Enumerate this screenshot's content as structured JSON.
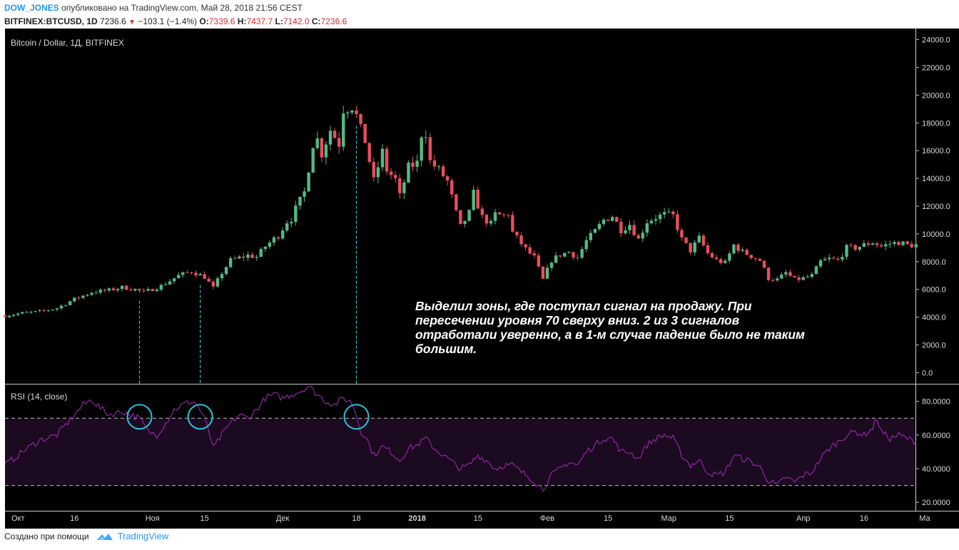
{
  "header": {
    "author": "DOW_JONES",
    "published": "опубликовано на TradingView.com, Май 28, 2018 21:56 CEST",
    "symbol": "BITFINEX:BTCUSD, 1D",
    "last": "7236.6",
    "change": "−103.1 (−1.4%)",
    "o_label": "O:",
    "o_value": "7339.6",
    "h_label": "H:",
    "h_value": "7437.7",
    "l_label": "L:",
    "l_value": "7142.0",
    "c_label": "C:",
    "c_value": "7236.6"
  },
  "footer": {
    "created": "Создано при помощи",
    "brand": "TradingView"
  },
  "annotation": "Выделил зоны, где поступал сигнал на продажу. При пересечении уровня 70 сверху вниз. 2 из 3 сигналов отработали уверенно, а в 1-м случае падение было не таким большим.",
  "colors": {
    "background": "#000000",
    "up": "#53b987",
    "down": "#eb4d5c",
    "rsi": "#9c27b0",
    "rsi_band": "#1b0a20",
    "signal": "#26c6da",
    "axis_text": "#d9d9d9"
  },
  "chart_data": [
    {
      "type": "candlestick",
      "title": "Bitcoin / Dollar, 1Д, BITFINEX",
      "ylim": [
        -800,
        24800
      ],
      "y_ticks": [
        "0.0",
        "2000.0",
        "4000.0",
        "6000.0",
        "8000.0",
        "10000.0",
        "12000.0",
        "14000.0",
        "16000.0",
        "18000.0",
        "20000.0",
        "22000.0",
        "24000.0"
      ],
      "y_tick_values": [
        0,
        2000,
        4000,
        6000,
        8000,
        10000,
        12000,
        14000,
        16000,
        18000,
        20000,
        22000,
        24000
      ],
      "x_labels": [
        "Окт",
        "16",
        "Ноя",
        "15",
        "Дек",
        "18",
        "2018",
        "15",
        "Фев",
        "15",
        "Мар",
        "15",
        "Апр",
        "16",
        "Ма"
      ],
      "x_label_days": [
        3,
        16,
        34,
        46,
        64,
        81,
        95,
        109,
        125,
        139,
        153,
        167,
        184,
        198,
        212
      ],
      "start": "2017-09-28",
      "signal_days": [
        31,
        45,
        81
      ],
      "anchors": [
        [
          0,
          4100
        ],
        [
          4,
          4300
        ],
        [
          8,
          4400
        ],
        [
          12,
          4650
        ],
        [
          16,
          5300
        ],
        [
          20,
          5800
        ],
        [
          24,
          5950
        ],
        [
          27,
          6150
        ],
        [
          30,
          6000
        ],
        [
          32,
          5800
        ],
        [
          36,
          6250
        ],
        [
          40,
          7000
        ],
        [
          43,
          7300
        ],
        [
          46,
          6900
        ],
        [
          48,
          6100
        ],
        [
          50,
          7200
        ],
        [
          52,
          8100
        ],
        [
          56,
          8450
        ],
        [
          58,
          8350
        ],
        [
          60,
          9100
        ],
        [
          63,
          9900
        ],
        [
          65,
          10900
        ],
        [
          66,
          11100
        ],
        [
          67,
          11800
        ],
        [
          69,
          13000
        ],
        [
          71,
          16500
        ],
        [
          72,
          16800
        ],
        [
          73,
          15800
        ],
        [
          75,
          17500
        ],
        [
          77,
          16500
        ],
        [
          78,
          19000
        ],
        [
          80,
          19200
        ],
        [
          81,
          18500
        ],
        [
          82,
          17500
        ],
        [
          83,
          16700
        ],
        [
          85,
          13800
        ],
        [
          87,
          15900
        ],
        [
          88,
          14600
        ],
        [
          90,
          13900
        ],
        [
          91,
          12700
        ],
        [
          93,
          14800
        ],
        [
          95,
          15100
        ],
        [
          96,
          17200
        ],
        [
          97,
          17300
        ],
        [
          98,
          15200
        ],
        [
          100,
          14600
        ],
        [
          102,
          13800
        ],
        [
          104,
          11500
        ],
        [
          105,
          10500
        ],
        [
          107,
          11500
        ],
        [
          108,
          12900
        ],
        [
          110,
          11200
        ],
        [
          112,
          10700
        ],
        [
          113,
          11400
        ],
        [
          115,
          11300
        ],
        [
          116,
          11500
        ],
        [
          117,
          10100
        ],
        [
          120,
          8900
        ],
        [
          122,
          8300
        ],
        [
          124,
          6700
        ],
        [
          126,
          8100
        ],
        [
          128,
          8500
        ],
        [
          130,
          8700
        ],
        [
          132,
          8300
        ],
        [
          134,
          9500
        ],
        [
          136,
          10200
        ],
        [
          138,
          11000
        ],
        [
          140,
          11300
        ],
        [
          142,
          10300
        ],
        [
          144,
          10700
        ],
        [
          146,
          9600
        ],
        [
          148,
          10900
        ],
        [
          150,
          11200
        ],
        [
          152,
          11400
        ],
        [
          154,
          11300
        ],
        [
          156,
          9600
        ],
        [
          158,
          8800
        ],
        [
          160,
          9700
        ],
        [
          162,
          8600
        ],
        [
          164,
          8100
        ],
        [
          166,
          7900
        ],
        [
          168,
          9200
        ],
        [
          170,
          8700
        ],
        [
          172,
          8400
        ],
        [
          174,
          8100
        ],
        [
          176,
          6800
        ],
        [
          178,
          6700
        ],
        [
          180,
          7200
        ],
        [
          182,
          6700
        ],
        [
          184,
          6800
        ],
        [
          186,
          7000
        ],
        [
          188,
          8000
        ],
        [
          190,
          8200
        ],
        [
          192,
          8100
        ],
        [
          194,
          9000
        ],
        [
          196,
          9000
        ],
        [
          198,
          9200
        ],
        [
          200,
          9400
        ],
        [
          202,
          9100
        ],
        [
          204,
          9300
        ],
        [
          206,
          9400
        ],
        [
          208,
          9200
        ],
        [
          210,
          9200
        ]
      ]
    },
    {
      "type": "line",
      "title": "RSI (14, close)",
      "ylim": [
        15,
        90
      ],
      "y_ticks": [
        "20.0000",
        "40.0000",
        "60.0000",
        "80.0000"
      ],
      "y_tick_values": [
        20,
        40,
        60,
        80
      ],
      "band": [
        30,
        70
      ],
      "rsi_anchors": [
        [
          0,
          42
        ],
        [
          4,
          50
        ],
        [
          8,
          57
        ],
        [
          12,
          60
        ],
        [
          14,
          66
        ],
        [
          16,
          72
        ],
        [
          18,
          78
        ],
        [
          20,
          81
        ],
        [
          22,
          76
        ],
        [
          24,
          72
        ],
        [
          27,
          74
        ],
        [
          29,
          72
        ],
        [
          31,
          70
        ],
        [
          33,
          62
        ],
        [
          35,
          60
        ],
        [
          37,
          67
        ],
        [
          39,
          75
        ],
        [
          41,
          78
        ],
        [
          43,
          80
        ],
        [
          44,
          79
        ],
        [
          46,
          70
        ],
        [
          47,
          62
        ],
        [
          48,
          52
        ],
        [
          50,
          60
        ],
        [
          52,
          67
        ],
        [
          54,
          72
        ],
        [
          56,
          70
        ],
        [
          58,
          75
        ],
        [
          60,
          82
        ],
        [
          62,
          84
        ],
        [
          64,
          82
        ],
        [
          66,
          84
        ],
        [
          68,
          86
        ],
        [
          70,
          89
        ],
        [
          72,
          84
        ],
        [
          74,
          80
        ],
        [
          76,
          78
        ],
        [
          78,
          82
        ],
        [
          80,
          79
        ],
        [
          81,
          72
        ],
        [
          82,
          62
        ],
        [
          83,
          60
        ],
        [
          85,
          48
        ],
        [
          87,
          53
        ],
        [
          89,
          50
        ],
        [
          91,
          45
        ],
        [
          93,
          52
        ],
        [
          95,
          54
        ],
        [
          97,
          58
        ],
        [
          99,
          52
        ],
        [
          101,
          48
        ],
        [
          103,
          44
        ],
        [
          105,
          40
        ],
        [
          107,
          42
        ],
        [
          109,
          48
        ],
        [
          111,
          45
        ],
        [
          113,
          40
        ],
        [
          115,
          42
        ],
        [
          117,
          42
        ],
        [
          119,
          38
        ],
        [
          121,
          35
        ],
        [
          123,
          30
        ],
        [
          124,
          28
        ],
        [
          126,
          36
        ],
        [
          128,
          40
        ],
        [
          130,
          44
        ],
        [
          132,
          42
        ],
        [
          134,
          50
        ],
        [
          136,
          54
        ],
        [
          138,
          58
        ],
        [
          140,
          58
        ],
        [
          142,
          50
        ],
        [
          144,
          50
        ],
        [
          146,
          46
        ],
        [
          148,
          54
        ],
        [
          150,
          58
        ],
        [
          152,
          60
        ],
        [
          154,
          58
        ],
        [
          156,
          48
        ],
        [
          158,
          42
        ],
        [
          160,
          45
        ],
        [
          162,
          38
        ],
        [
          164,
          36
        ],
        [
          166,
          38
        ],
        [
          168,
          48
        ],
        [
          170,
          46
        ],
        [
          172,
          44
        ],
        [
          174,
          41
        ],
        [
          176,
          33
        ],
        [
          178,
          30
        ],
        [
          180,
          35
        ],
        [
          182,
          32
        ],
        [
          184,
          36
        ],
        [
          186,
          38
        ],
        [
          188,
          46
        ],
        [
          190,
          52
        ],
        [
          192,
          56
        ],
        [
          194,
          60
        ],
        [
          196,
          62
        ],
        [
          198,
          60
        ],
        [
          200,
          64
        ],
        [
          201,
          70
        ],
        [
          202,
          62
        ],
        [
          204,
          58
        ],
        [
          206,
          60
        ],
        [
          208,
          58
        ],
        [
          210,
          56
        ]
      ]
    }
  ]
}
